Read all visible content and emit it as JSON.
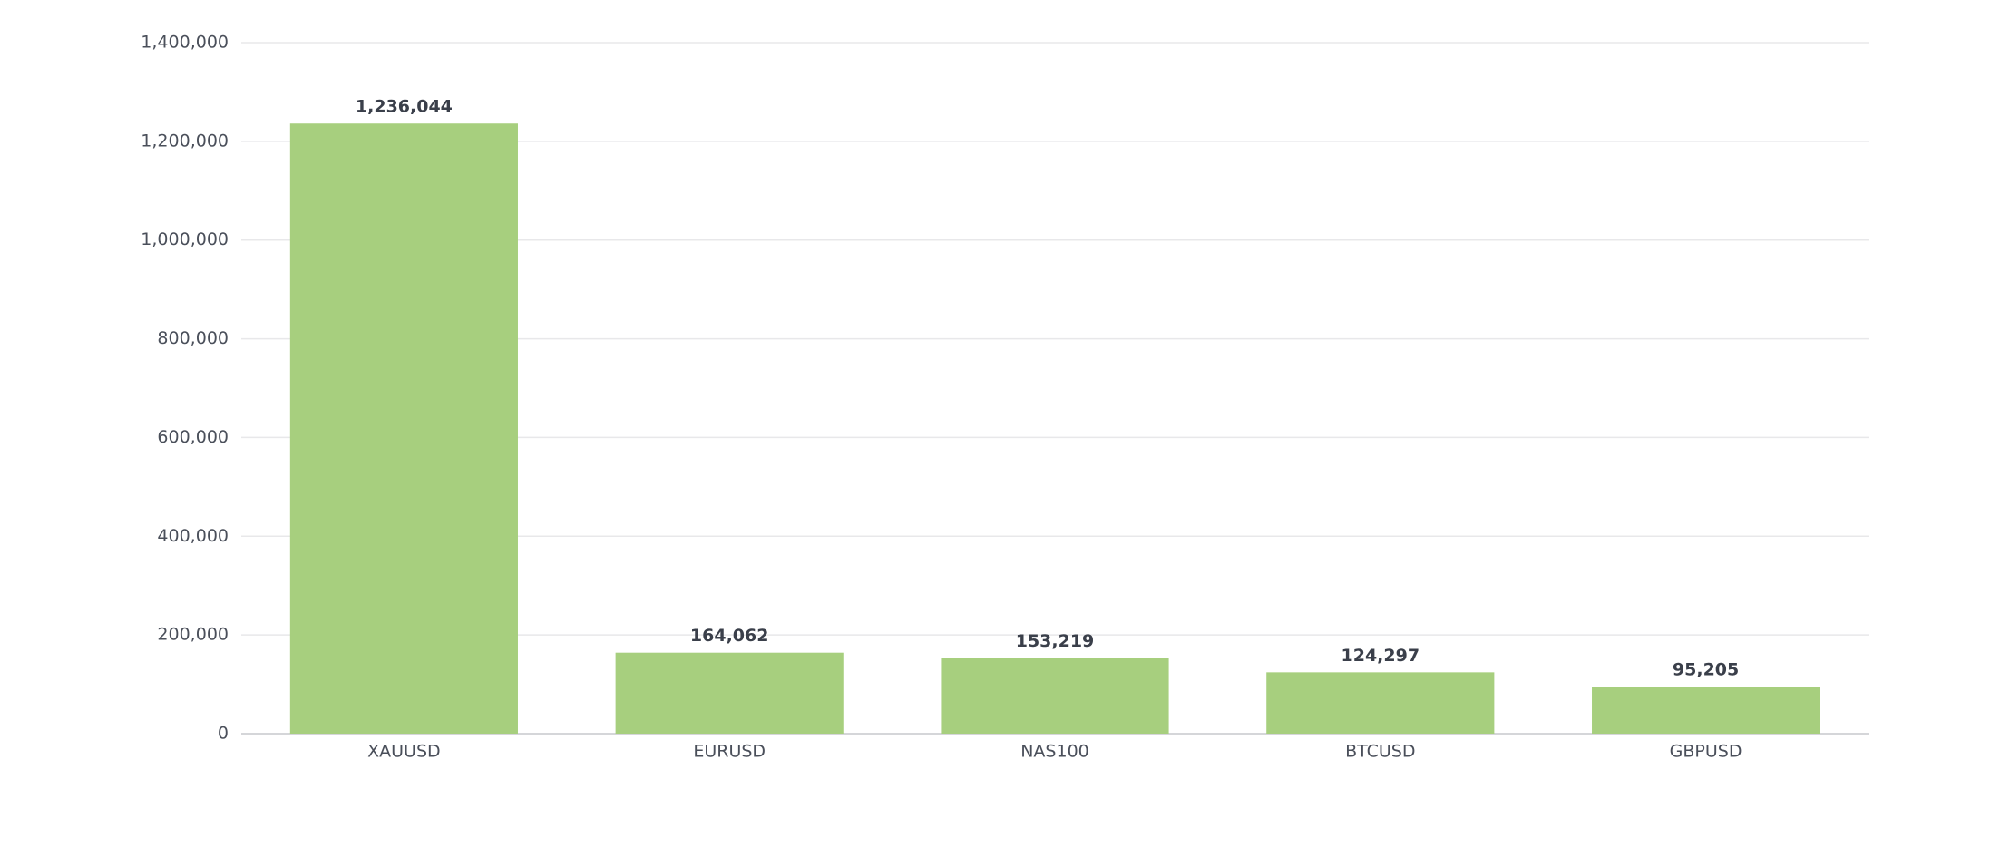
{
  "chart_data": {
    "type": "bar",
    "categories": [
      "XAUUSD",
      "EURUSD",
      "NAS100",
      "BTCUSD",
      "GBPUSD"
    ],
    "values": [
      1236044,
      164062,
      153219,
      124297,
      95205
    ],
    "value_labels": [
      "1,236,044",
      "164,062",
      "153,219",
      "124,297",
      "95,205"
    ],
    "color": "#a7cf7e",
    "ylim": [
      0,
      1400000
    ],
    "yticks": [
      0,
      {
        "value": 200000,
        "label": "200,000"
      },
      {
        "value": 400000,
        "label": "400,000"
      },
      {
        "value": 600000,
        "label": "600,000"
      },
      {
        "value": 800000,
        "label": "800,000"
      },
      {
        "value": 1000000,
        "label": "1,000,000"
      },
      {
        "value": 1200000,
        "label": "1,200,000"
      },
      {
        "value": 1400000,
        "label": "1,400,000"
      }
    ],
    "grid": true
  }
}
